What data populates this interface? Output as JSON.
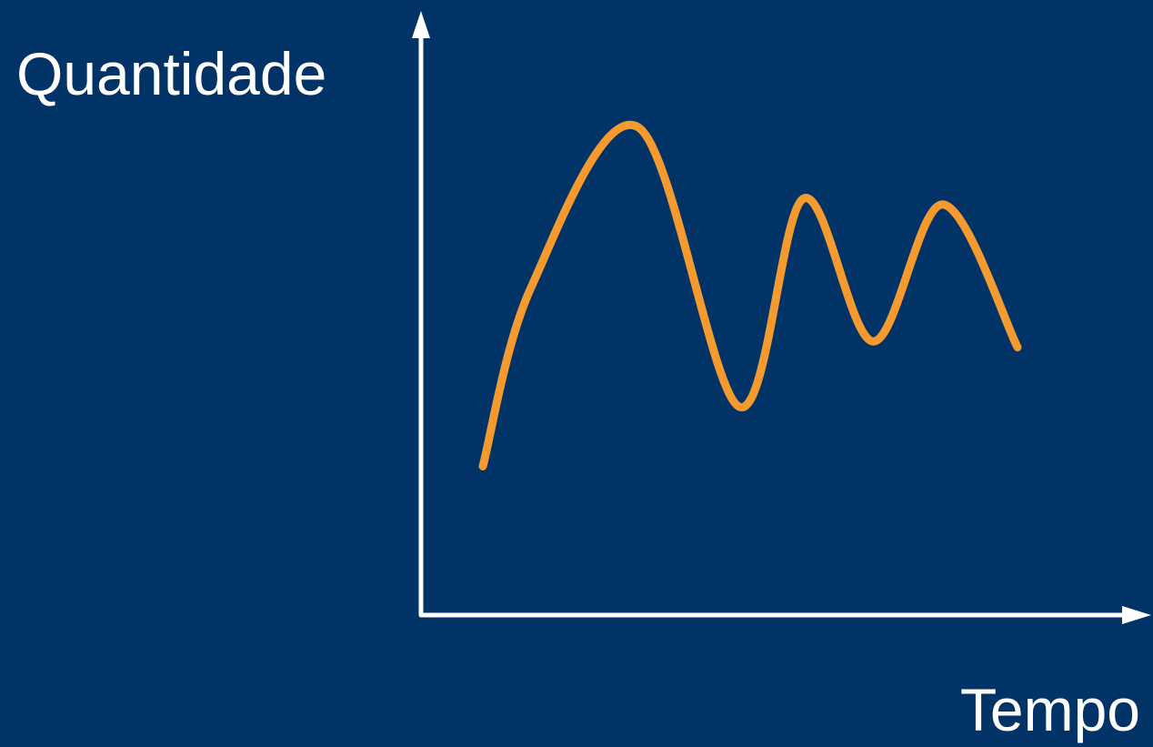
{
  "background_color": "#023366",
  "axis_color": "#ffffff",
  "labels": {
    "y_axis": "Quantidade",
    "x_axis": "Tempo"
  },
  "chart_data": {
    "type": "line",
    "curve_color": "#f59a2f",
    "series": [
      {
        "values": [
          {
            "x": 0.0,
            "y": 0.25
          },
          {
            "x": 0.09,
            "y": 0.55
          },
          {
            "x": 0.29,
            "y": 0.82
          },
          {
            "x": 0.48,
            "y": 0.35
          },
          {
            "x": 0.6,
            "y": 0.7
          },
          {
            "x": 0.73,
            "y": 0.46
          },
          {
            "x": 0.86,
            "y": 0.69
          },
          {
            "x": 1.0,
            "y": 0.45
          }
        ]
      }
    ],
    "xlim": [
      0,
      1
    ],
    "ylim": [
      0,
      1
    ],
    "grid": false,
    "axis_arrows": true
  }
}
